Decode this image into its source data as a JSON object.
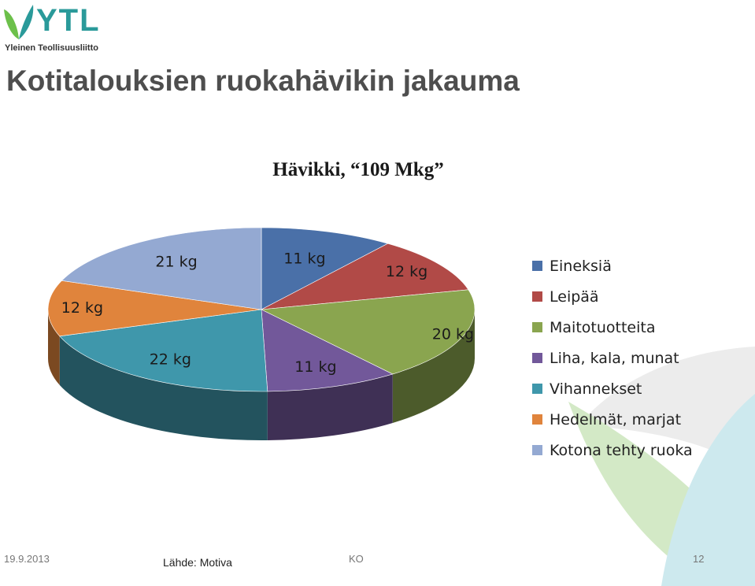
{
  "brand": {
    "logo_text": "YTL",
    "logo_subtitle": "Yleinen Teollisuusliitto",
    "teal": "#2a9a9a",
    "green": "#6cc04a"
  },
  "slide": {
    "title": "Kotitalouksien ruokahävikin jakauma"
  },
  "chart_data": {
    "type": "pie",
    "title": "Hävikki, “109 Mkg”",
    "unit": "kg",
    "legend_position": "right",
    "categories": [
      "Eineksiä",
      "Leipää",
      "Maitotuotteita",
      "Liha, kala, munat",
      "Vihannekset",
      "Hedelmät, marjat",
      "Kotona tehty ruoka"
    ],
    "values": [
      11,
      12,
      20,
      11,
      22,
      12,
      21
    ],
    "data_labels": [
      "11 kg",
      "12 kg",
      "20 kg",
      "11 kg",
      "22 kg",
      "12 kg",
      "21 kg"
    ],
    "colors": [
      "#4a70a8",
      "#b14a47",
      "#8aa54f",
      "#72589a",
      "#3f97ab",
      "#e0843c",
      "#94a9d2"
    ]
  },
  "footer": {
    "date": "19.9.2013",
    "source": "Lähde: Motiva",
    "author": "KO",
    "page": "12"
  }
}
